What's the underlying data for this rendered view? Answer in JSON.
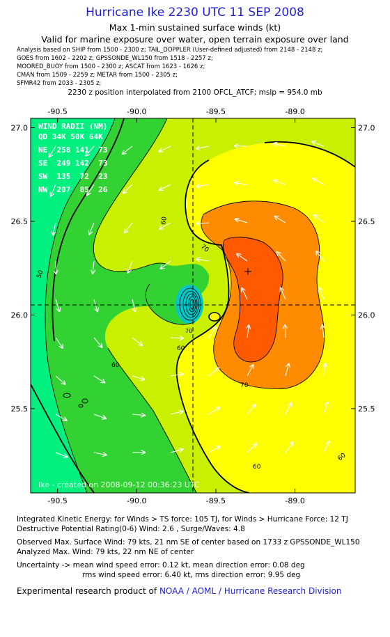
{
  "header": {
    "title": "Hurricane Ike 2230 UTC 11 SEP 2008",
    "subtitle_1": "Max 1-min sustained surface winds (kt)",
    "subtitle_2": "Valid for marine exposure over water, open terrain exposure over land",
    "analysis_lines": [
      "Analysis based on  SHIP from 1500 - 2300 z;  TAIL_DOPPLER (User-defined adjusted) from 2148 - 2148 z;",
      "GOES from 1602 - 2202 z;  GPSSONDE_WL150 from 1518 - 2257 z;",
      "MOORED_BUOY from 1500 - 2300 z;  ASCAT from 1623 - 1626 z;",
      "CMAN from 1509 - 2259 z;  METAR from 1500 - 2305 z;",
      "SFMR42 from 2033 - 2305 z;"
    ],
    "position_line": "2230 z position interpolated from 2100 OFCL_ATCF; mslp = 954.0 mb"
  },
  "map": {
    "x_ticks": [
      "-90.5",
      "-90.0",
      "-89.5",
      "-89.0"
    ],
    "y_ticks": [
      "27.0",
      "26.5",
      "26.0",
      "25.5"
    ],
    "x_range": [
      -90.67,
      -88.62
    ],
    "y_range": [
      25.05,
      27.05
    ],
    "center": {
      "lon": -89.7,
      "lat": 26.05
    },
    "max_wind_marker": {
      "lon": -89.35,
      "lat": 26.23
    },
    "contour_labels": [
      "50",
      "60",
      "60",
      "60",
      "60",
      "60",
      "70",
      "70",
      "70"
    ],
    "wind_radii": {
      "title": "WIND RADII (NM)",
      "header": "QD 34K 50K 64K",
      "rows": [
        "NE  258 141  73",
        "SE  249 142  73",
        "SW  135  72  23",
        "NW  207  85  26"
      ]
    },
    "credit": "Ike - created on 2008-09-12 00:36:23 UTC",
    "colors": {
      "lt50": "#00f080",
      "c50_60": "#33d233",
      "c60_70": "#c8f000",
      "c70_80": "#ffff00",
      "c80_90": "#ff8c00",
      "c90": "#ff5a00",
      "vortex": "#00c8c8"
    }
  },
  "footer": {
    "ike_line": "Integrated Kinetic Energy:  for Winds > TS force: 105 TJ,  for Winds > Hurricane Force: 12 TJ",
    "dpr_line": "Destructive Potential Rating(0-6)   Wind: 2.6 , Surge/Waves: 4.8",
    "observed_line": "Observed Max. Surface Wind: 79 kts, 21 nm SE of center based on 1733 z GPSSONDE_WL150",
    "analyzed_line": "Analyzed Max. Wind: 79 kts, 22 nm NE of center",
    "uncertainty_1": "Uncertainty -> mean wind speed error: 0.12 kt,   mean direction error: 0.08 deg",
    "uncertainty_2": "rms wind speed error: 6.40 kt,   rms direction error: 9.95 deg",
    "credit_prefix": "Experimental research product of",
    "credit_org": "NOAA / AOML / Hurricane Research Division"
  }
}
